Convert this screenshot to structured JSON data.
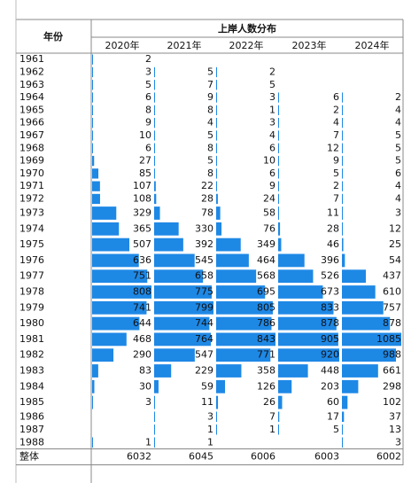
{
  "table": {
    "header": {
      "year": "年份",
      "group": "上岸人数分布",
      "columns": [
        "2020年",
        "2021年",
        "2022年",
        "2023年",
        "2024年"
      ]
    },
    "rows": [
      {
        "year": "1961",
        "values": [
          2,
          null,
          null,
          null,
          null
        ]
      },
      {
        "year": "1962",
        "values": [
          3,
          5,
          2,
          null,
          null
        ]
      },
      {
        "year": "1963",
        "values": [
          5,
          7,
          5,
          null,
          null
        ]
      },
      {
        "year": "1964",
        "values": [
          6,
          9,
          3,
          6,
          2
        ]
      },
      {
        "year": "1965",
        "values": [
          8,
          8,
          1,
          2,
          4
        ]
      },
      {
        "year": "1966",
        "values": [
          9,
          4,
          3,
          4,
          4
        ]
      },
      {
        "year": "1967",
        "values": [
          10,
          5,
          4,
          7,
          5
        ]
      },
      {
        "year": "1968",
        "values": [
          6,
          8,
          6,
          12,
          5
        ]
      },
      {
        "year": "1969",
        "values": [
          27,
          5,
          10,
          9,
          5
        ]
      },
      {
        "year": "1970",
        "values": [
          85,
          8,
          6,
          5,
          6
        ]
      },
      {
        "year": "1971",
        "values": [
          107,
          22,
          9,
          2,
          4
        ]
      },
      {
        "year": "1972",
        "values": [
          108,
          28,
          24,
          7,
          4
        ]
      },
      {
        "year": "1973",
        "values": [
          329,
          78,
          58,
          11,
          3
        ]
      },
      {
        "year": "1974",
        "values": [
          365,
          330,
          76,
          28,
          12
        ]
      },
      {
        "year": "1975",
        "values": [
          507,
          392,
          349,
          46,
          25
        ]
      },
      {
        "year": "1976",
        "values": [
          636,
          545,
          464,
          396,
          54
        ]
      },
      {
        "year": "1977",
        "values": [
          751,
          658,
          568,
          526,
          437
        ]
      },
      {
        "year": "1978",
        "values": [
          808,
          775,
          695,
          673,
          610
        ]
      },
      {
        "year": "1979",
        "values": [
          741,
          799,
          805,
          833,
          757
        ]
      },
      {
        "year": "1980",
        "values": [
          644,
          744,
          786,
          878,
          878
        ]
      },
      {
        "year": "1981",
        "values": [
          468,
          764,
          843,
          905,
          1085
        ]
      },
      {
        "year": "1982",
        "values": [
          290,
          547,
          771,
          920,
          988
        ]
      },
      {
        "year": "1983",
        "values": [
          83,
          229,
          358,
          448,
          661
        ]
      },
      {
        "year": "1984",
        "values": [
          30,
          59,
          126,
          203,
          298
        ]
      },
      {
        "year": "1985",
        "values": [
          3,
          11,
          26,
          60,
          102
        ]
      },
      {
        "year": "1986",
        "values": [
          null,
          3,
          7,
          17,
          37
        ]
      },
      {
        "year": "1987",
        "values": [
          null,
          1,
          1,
          5,
          13
        ]
      },
      {
        "year": "1988",
        "values": [
          1,
          1,
          null,
          null,
          3
        ]
      }
    ],
    "total": {
      "label": "整体",
      "values": [
        6032,
        6045,
        6006,
        6003,
        6002
      ]
    },
    "bar_color": "#1e88e5"
  }
}
